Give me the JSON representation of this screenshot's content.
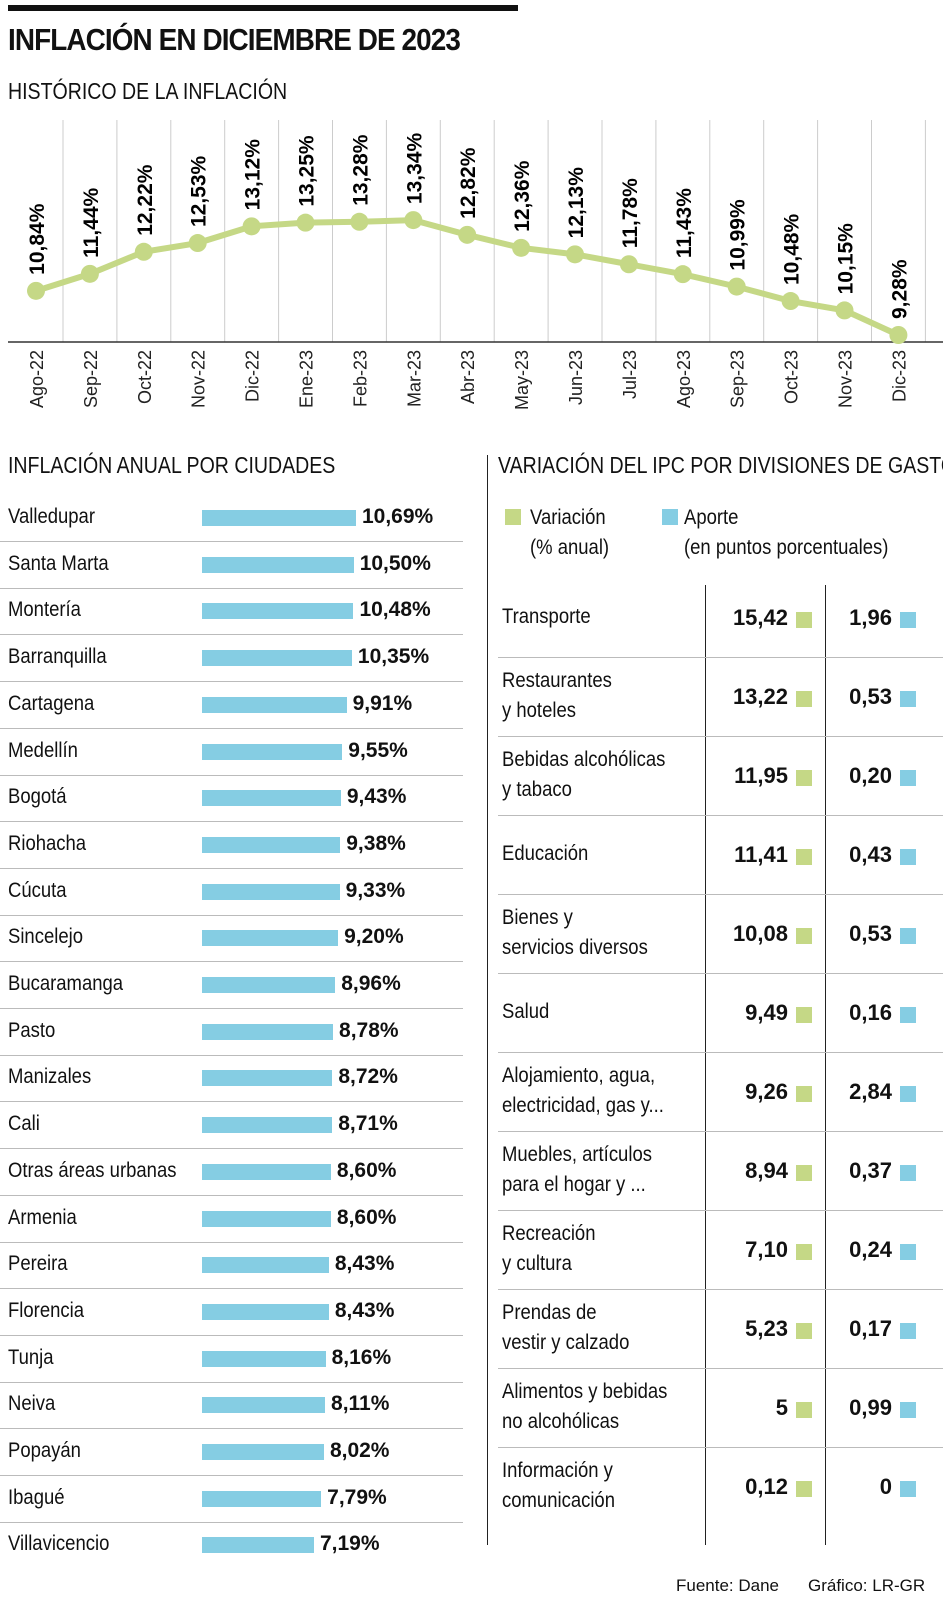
{
  "title": "INFLACIÓN EN DICIEMBRE DE 2023",
  "colors": {
    "green": "#c5d886",
    "blue": "#85cde3"
  },
  "chart_data": [
    {
      "type": "line",
      "title": "HISTÓRICO DE LA INFLACIÓN",
      "categories": [
        "Ago-22",
        "Sep-22",
        "Oct-22",
        "Nov-22",
        "Dic-22",
        "Ene-23",
        "Feb-23",
        "Mar-23",
        "Abr-23",
        "May-23",
        "Jun-23",
        "Jul-23",
        "Ago-23",
        "Sep-23",
        "Oct-23",
        "Nov-23",
        "Dic-23"
      ],
      "values": [
        10.84,
        11.44,
        12.22,
        12.53,
        13.12,
        13.25,
        13.28,
        13.34,
        12.82,
        12.36,
        12.13,
        11.78,
        11.43,
        10.99,
        10.48,
        10.15,
        9.28
      ],
      "labels": [
        "10,84%",
        "11,44%",
        "12,22%",
        "12,53%",
        "13,12%",
        "13,25%",
        "13,28%",
        "13,34%",
        "12,82%",
        "12,36%",
        "12,13%",
        "11,78%",
        "11,43%",
        "10,99%",
        "10,48%",
        "10,15%",
        "9,28%"
      ],
      "color": "#c5d886",
      "grid": "vertical"
    },
    {
      "type": "bar",
      "orientation": "horizontal",
      "title": "INFLACIÓN ANUAL POR CIUDADES",
      "categories": [
        "Valledupar",
        "Santa Marta",
        "Montería",
        "Barranquilla",
        "Cartagena",
        "Medellín",
        "Bogotá",
        "Riohacha",
        "Cúcuta",
        "Sincelejo",
        "Bucaramanga",
        "Pasto",
        "Manizales",
        "Cali",
        "Otras áreas urbanas",
        "Armenia",
        "Pereira",
        "Florencia",
        "Tunja",
        "Neiva",
        "Popayán",
        "Ibagué",
        "Villavicencio"
      ],
      "values": [
        10.69,
        10.5,
        10.48,
        10.35,
        9.91,
        9.55,
        9.43,
        9.38,
        9.33,
        9.2,
        8.96,
        8.78,
        8.72,
        8.71,
        8.6,
        8.6,
        8.43,
        8.43,
        8.16,
        8.11,
        8.02,
        7.79,
        7.19
      ],
      "labels": [
        "10,69%",
        "10,50%",
        "10,48%",
        "10,35%",
        "9,91%",
        "9,55%",
        "9,43%",
        "9,38%",
        "9,33%",
        "9,20%",
        "8,96%",
        "8,78%",
        "8,72%",
        "8,71%",
        "8,60%",
        "8,60%",
        "8,43%",
        "8,43%",
        "8,16%",
        "8,11%",
        "8,02%",
        "7,79%",
        "7,19%"
      ],
      "color": "#85cde3"
    },
    {
      "type": "table",
      "title": "VARIACIÓN DEL IPC POR DIVISIONES DE GASTO",
      "legend": [
        {
          "name": "Variación",
          "sub": "(% anual)",
          "color": "#c5d886"
        },
        {
          "name": "Aporte",
          "sub": "(en puntos porcentuales)",
          "color": "#85cde3"
        }
      ],
      "rows": [
        {
          "l1": "Transporte",
          "l2": "",
          "var": "15,42",
          "ap": "1,96"
        },
        {
          "l1": "Restaurantes",
          "l2": "y hoteles",
          "var": "13,22",
          "ap": "0,53"
        },
        {
          "l1": "Bebidas alcohólicas",
          "l2": "y tabaco",
          "var": "11,95",
          "ap": "0,20"
        },
        {
          "l1": "Educación",
          "l2": "",
          "var": "11,41",
          "ap": "0,43"
        },
        {
          "l1": "Bienes y",
          "l2": "servicios diversos",
          "var": "10,08",
          "ap": "0,53"
        },
        {
          "l1": "Salud",
          "l2": "",
          "var": "9,49",
          "ap": "0,16"
        },
        {
          "l1": "Alojamiento, agua,",
          "l2": "electricidad, gas y...",
          "var": "9,26",
          "ap": "2,84"
        },
        {
          "l1": "Muebles, artículos",
          "l2": "para el hogar y ...",
          "var": "8,94",
          "ap": "0,37"
        },
        {
          "l1": "Recreación",
          "l2": "y cultura",
          "var": "7,10",
          "ap": "0,24"
        },
        {
          "l1": "Prendas de",
          "l2": "vestir y calzado",
          "var": "5,23",
          "ap": "0,17"
        },
        {
          "l1": "Alimentos y bebidas",
          "l2": "no alcohólicas",
          "var": "5",
          "ap": "0,99"
        },
        {
          "l1": "Información y",
          "l2": "comunicación",
          "var": "0,12",
          "ap": "0"
        }
      ]
    }
  ],
  "footer": {
    "source": "Fuente: Dane",
    "credit": "Gráfico: LR-GR"
  }
}
